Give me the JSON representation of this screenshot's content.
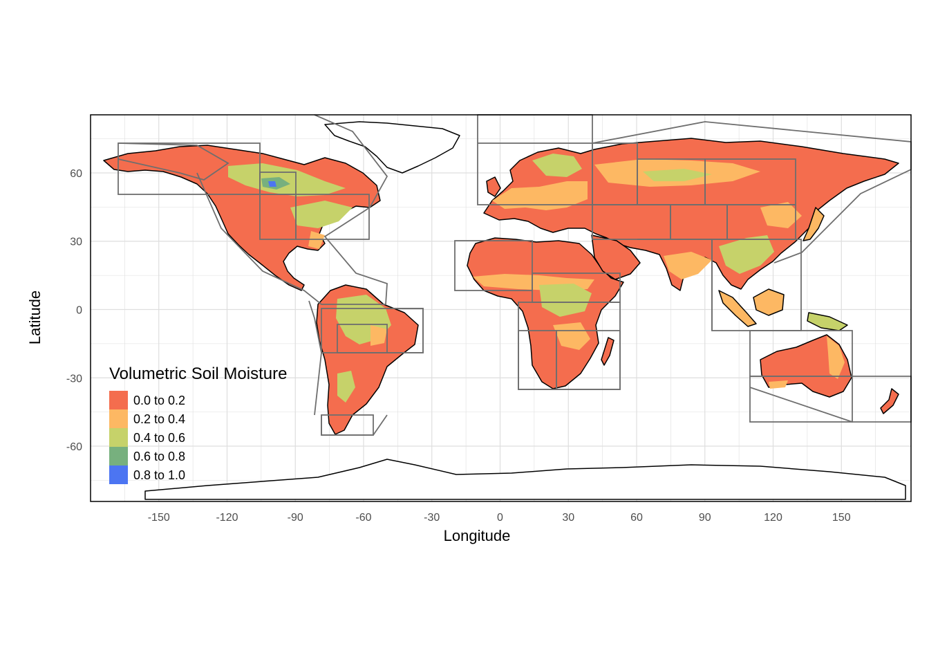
{
  "chart_data": {
    "type": "map",
    "xlabel": "Longitude",
    "ylabel": "Latitude",
    "xlim": [
      -180,
      180
    ],
    "ylim": [
      -85,
      85
    ],
    "x_ticks": [
      -150,
      -120,
      -90,
      -60,
      -30,
      0,
      30,
      60,
      90,
      120,
      150
    ],
    "x_tick_labels": [
      "-150",
      "-120",
      "-90",
      "-60",
      "-30",
      "0",
      "30",
      "60",
      "90",
      "120",
      "150"
    ],
    "y_ticks": [
      60,
      30,
      0,
      -30,
      -60
    ],
    "y_tick_labels": [
      "60",
      "30",
      "0",
      "-30",
      "-60"
    ],
    "grid": true,
    "legend": {
      "title": "Volumetric Soil Moisture",
      "position": "bottom-left",
      "entries": [
        {
          "label": "0.0 to 0.2",
          "color": "#F46D4E"
        },
        {
          "label": "0.2 to 0.4",
          "color": "#FDB863"
        },
        {
          "label": "0.4 to 0.6",
          "color": "#C6D26A"
        },
        {
          "label": "0.6 to 0.8",
          "color": "#77B07E"
        },
        {
          "label": "0.8 to 1.0",
          "color": "#4C75F2"
        }
      ]
    },
    "colors": {
      "land_dominant": "#F46D4E",
      "coastline": "#000000",
      "region_outline": "#6E6E6E",
      "grid": "#DEDEDE",
      "panel_border": "#000000"
    }
  }
}
